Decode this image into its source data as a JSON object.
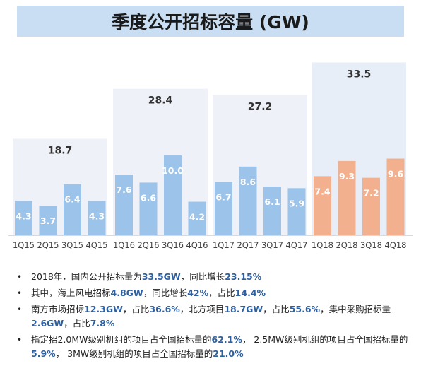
{
  "title": "季度公开招标容量 (GW)",
  "chart_data": {
    "type": "bar",
    "title": "季度公开招标容量 (GW)",
    "categories": [
      "1Q15",
      "2Q15",
      "3Q15",
      "4Q15",
      "1Q16",
      "2Q16",
      "3Q16",
      "4Q16",
      "1Q17",
      "2Q17",
      "3Q17",
      "4Q17",
      "1Q18",
      "2Q18",
      "3Q18",
      "4Q18"
    ],
    "values": [
      4.3,
      3.7,
      6.4,
      4.3,
      7.6,
      6.6,
      10.0,
      4.2,
      6.7,
      8.6,
      6.1,
      5.9,
      7.4,
      9.3,
      7.2,
      9.6
    ],
    "value_labels": [
      "4.3",
      "3.7",
      "6.4",
      "4.3",
      "7.6",
      "6.6",
      "10.0",
      "4.2",
      "6.7",
      "8.6",
      "6.1",
      "5.9",
      "7.4",
      "9.3",
      "7.2",
      "9.6"
    ],
    "year_totals": [
      {
        "year": "2015",
        "value": 18.7,
        "label": "18.7"
      },
      {
        "year": "2016",
        "value": 28.4,
        "label": "28.4"
      },
      {
        "year": "2017",
        "value": 27.2,
        "label": "27.2"
      },
      {
        "year": "2018",
        "value": 33.5,
        "label": "33.5"
      }
    ],
    "axis_ticks": [
      "1Q15",
      "2Q15",
      "3Q15",
      "4Q15",
      "1Q16",
      "2Q16",
      "3Q16",
      "4Q16",
      "1Q17",
      "2Q17",
      "3Q17",
      "4Q17",
      "1Q18",
      "2Q18",
      "3Q18",
      "4Q18"
    ],
    "colors": {
      "bar_default": "#9cc3ea",
      "bar_2018": "#f2b08f",
      "total_box": "#eef2f8",
      "total_box_2018": "#e7eef7",
      "value_label": "#ffffff"
    }
  },
  "bullets": [
    {
      "parts": [
        {
          "t": "2018年，国内公开招标量为"
        },
        {
          "t": "33.5GW",
          "hl": true
        },
        {
          "t": "，同比增长"
        },
        {
          "t": "23.15%",
          "hl": true
        }
      ]
    },
    {
      "parts": [
        {
          "t": "其中，海上风电招标"
        },
        {
          "t": "4.8GW",
          "hl": true
        },
        {
          "t": "，同比增长"
        },
        {
          "t": "42%",
          "hl": true
        },
        {
          "t": "，占比"
        },
        {
          "t": "14.4%",
          "hl": true
        }
      ]
    },
    {
      "parts": [
        {
          "t": "南方市场招标"
        },
        {
          "t": "12.3GW",
          "hl": true
        },
        {
          "t": "，占比"
        },
        {
          "t": "36.6%",
          "hl": true
        },
        {
          "t": "，北方项目"
        },
        {
          "t": "18.7GW",
          "hl": true
        },
        {
          "t": "，占比"
        },
        {
          "t": "55.6%",
          "hl": true
        },
        {
          "t": "，集中采购招标量"
        },
        {
          "t": "2.6GW",
          "hl": true
        },
        {
          "t": "，占比"
        },
        {
          "t": "7.8%",
          "hl": true
        }
      ]
    },
    {
      "parts": [
        {
          "t": "指定招2.0MW级别机组的项目占全国招标量的"
        },
        {
          "t": "62.1%",
          "hl": true
        },
        {
          "t": "， 2.5MW级别机组的项目占全国招标量的"
        },
        {
          "t": "5.9%",
          "hl": true
        },
        {
          "t": "， 3MW级别机组的项目占全国招标量的"
        },
        {
          "t": "21.0%",
          "hl": true
        }
      ]
    }
  ],
  "bullet_symbol": "•"
}
